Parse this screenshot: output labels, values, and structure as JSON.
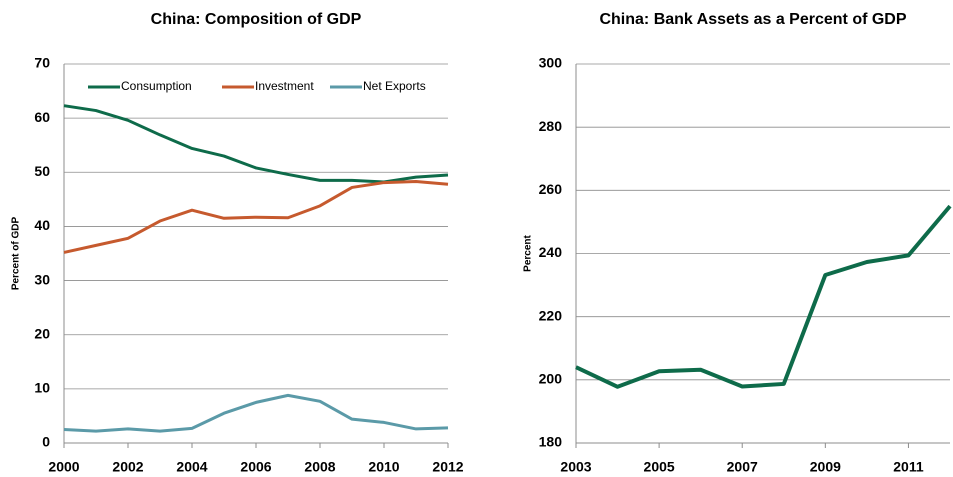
{
  "chart_data": [
    {
      "type": "line",
      "title": "China: Composition of GDP",
      "y_label": "Percent of GDP",
      "x": [
        2000,
        2001,
        2002,
        2003,
        2004,
        2005,
        2006,
        2007,
        2008,
        2009,
        2010,
        2011,
        2012
      ],
      "series": [
        {
          "name": "Consumption",
          "color": "#0e6b4a",
          "values": [
            62.3,
            61.4,
            59.6,
            56.9,
            54.4,
            53.0,
            50.8,
            49.6,
            48.5,
            48.5,
            48.2,
            49.1,
            49.5
          ]
        },
        {
          "name": "Investment",
          "color": "#c65a2e",
          "values": [
            35.2,
            36.5,
            37.8,
            41.0,
            43.0,
            41.5,
            41.7,
            41.6,
            43.8,
            47.2,
            48.1,
            48.3,
            47.8
          ]
        },
        {
          "name": "Net Exports",
          "color": "#5b9aa8",
          "values": [
            2.5,
            2.2,
            2.6,
            2.2,
            2.7,
            5.5,
            7.5,
            8.8,
            7.7,
            4.4,
            3.8,
            2.6,
            2.8
          ]
        }
      ],
      "xlim": [
        2000,
        2012
      ],
      "xticks": [
        2000,
        2002,
        2004,
        2006,
        2008,
        2010,
        2012
      ],
      "ylim": [
        0,
        70
      ],
      "yticks": [
        0,
        10,
        20,
        30,
        40,
        50,
        60,
        70
      ],
      "grid": true,
      "legend": "top"
    },
    {
      "type": "line",
      "title": "China:  Bank Assets as a Percent of GDP",
      "y_label": "Percent",
      "x": [
        2003,
        2004,
        2005,
        2006,
        2007,
        2008,
        2009,
        2010,
        2011,
        2012
      ],
      "values": [
        204.0,
        197.8,
        202.7,
        203.2,
        197.9,
        198.7,
        233.2,
        237.3,
        239.4,
        255.0
      ],
      "color": "#0e6b4a",
      "xlim": [
        2003,
        2012
      ],
      "xticks": [
        2003,
        2005,
        2007,
        2009,
        2011
      ],
      "ylim": [
        180,
        300
      ],
      "yticks": [
        180,
        200,
        220,
        240,
        260,
        280,
        300
      ],
      "grid": true
    }
  ]
}
